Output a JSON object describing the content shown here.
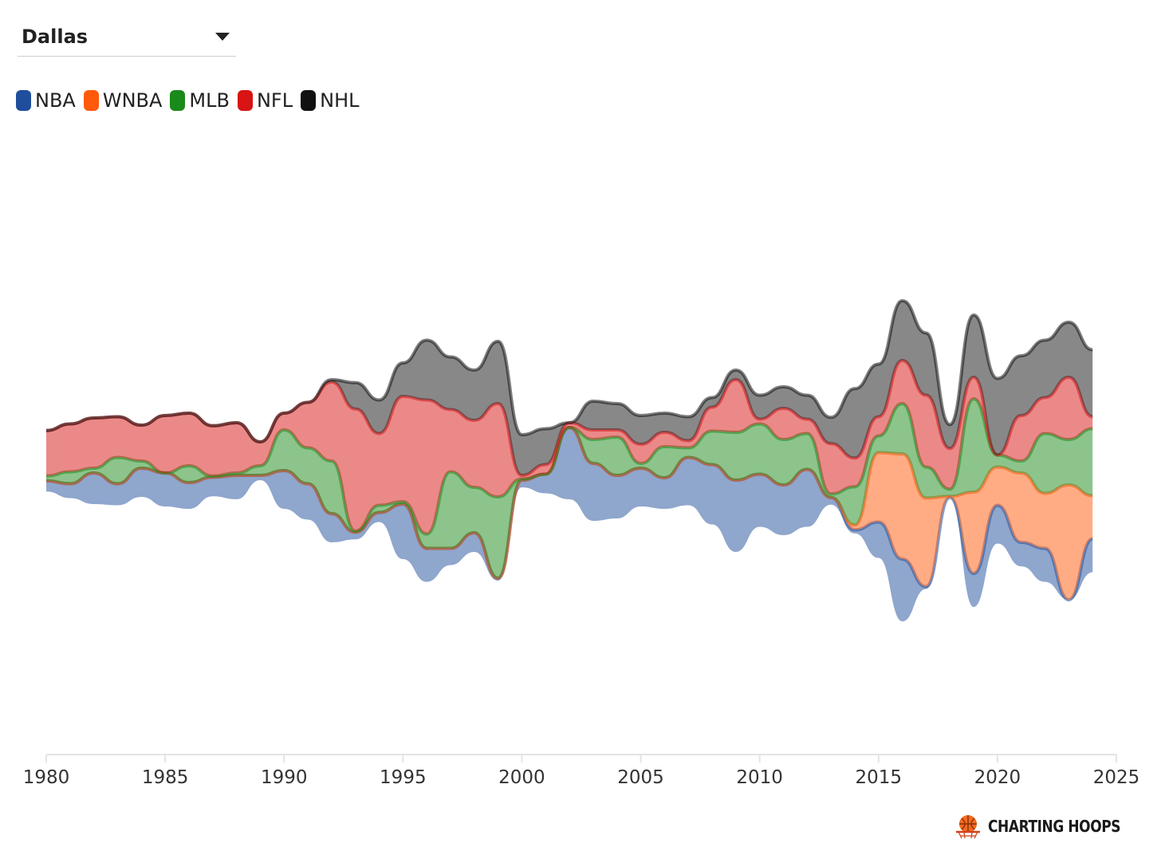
{
  "filter": {
    "selected_city": "Dallas"
  },
  "legend": [
    {
      "key": "nba",
      "label": "NBA",
      "color": "#1f4e9c"
    },
    {
      "key": "wnba",
      "label": "WNBA",
      "color": "#ff5a0a"
    },
    {
      "key": "mlb",
      "label": "MLB",
      "color": "#1a8a1a"
    },
    {
      "key": "nfl",
      "label": "NFL",
      "color": "#d81414"
    },
    {
      "key": "nhl",
      "label": "NHL",
      "color": "#111111"
    }
  ],
  "brand": {
    "name": "CHARTING HOOPS",
    "icon": "basketball-hoop-icon"
  },
  "chart_data": {
    "type": "streamgraph",
    "title": "",
    "xlabel": "",
    "ylabel": "",
    "xlim": [
      1980,
      2025
    ],
    "x_ticks": [
      "1980",
      "1985",
      "1990",
      "1995",
      "2000",
      "2005",
      "2010",
      "2015",
      "2020",
      "2025"
    ],
    "grid": false,
    "x": [
      1980,
      1981,
      1982,
      1983,
      1984,
      1985,
      1986,
      1987,
      1988,
      1989,
      1990,
      1991,
      1992,
      1993,
      1994,
      1995,
      1996,
      1997,
      1998,
      1999,
      2000,
      2001,
      2002,
      2003,
      2004,
      2005,
      2006,
      2007,
      2008,
      2009,
      2010,
      2011,
      2012,
      2013,
      2014,
      2015,
      2016,
      2017,
      2018,
      2019,
      2020,
      2021,
      2022,
      2023,
      2024
    ],
    "series": [
      {
        "name": "NBA",
        "color": "#1f4e9c",
        "values": [
          0.45,
          0.6,
          1.3,
          0.9,
          1.2,
          1.4,
          1.1,
          0.8,
          1.0,
          0.2,
          1.6,
          1.5,
          1.2,
          0.3,
          0.4,
          2.3,
          1.4,
          0.7,
          0.8,
          0.1,
          0.3,
          0.8,
          3.0,
          2.4,
          1.8,
          1.6,
          1.3,
          2.0,
          2.5,
          3.0,
          2.2,
          2.1,
          2.4,
          0.3,
          0.15,
          1.5,
          2.6,
          0.1,
          0.0,
          1.4,
          1.6,
          1.0,
          1.4,
          0.0,
          1.4
        ]
      },
      {
        "name": "WNBA",
        "color": "#ff5a0a",
        "values": [
          0,
          0,
          0,
          0,
          0,
          0,
          0,
          0,
          0,
          0,
          0,
          0,
          0,
          0,
          0,
          0,
          0,
          0,
          0,
          0,
          0,
          0,
          0,
          0,
          0,
          0,
          0,
          0,
          0,
          0,
          0,
          0,
          0,
          0,
          0.2,
          2.9,
          4.4,
          3.7,
          0.05,
          3.4,
          1.6,
          2.9,
          2.3,
          4.8,
          1.8
        ]
      },
      {
        "name": "MLB",
        "color": "#1a8a1a",
        "values": [
          0.2,
          0.5,
          0.2,
          1.1,
          0.3,
          0.0,
          0.7,
          0.05,
          0.1,
          0.4,
          1.7,
          1.5,
          2.2,
          0.05,
          0.3,
          0.1,
          0.6,
          3.2,
          1.9,
          3.4,
          0.05,
          0.0,
          0.0,
          1.0,
          1.6,
          0.2,
          1.3,
          0.4,
          1.4,
          2.0,
          2.1,
          1.9,
          1.5,
          0.15,
          1.6,
          0.7,
          2.1,
          1.3,
          0.3,
          3.9,
          0.5,
          0.5,
          2.5,
          1.9,
          2.8
        ]
      },
      {
        "name": "NFL",
        "color": "#d81414",
        "values": [
          1.9,
          2.0,
          2.1,
          1.7,
          1.5,
          2.4,
          2.2,
          2.1,
          2.1,
          1.0,
          0.7,
          1.9,
          3.3,
          5.1,
          3.0,
          4.4,
          5.6,
          2.6,
          2.8,
          3.9,
          0.15,
          0.4,
          0.2,
          0.4,
          0.3,
          0.8,
          0.6,
          0.3,
          1.0,
          2.2,
          0.2,
          1.3,
          0.6,
          2.1,
          1.2,
          0.8,
          1.8,
          3.0,
          1.7,
          0.9,
          0.0,
          1.9,
          1.5,
          2.6,
          0.5
        ]
      },
      {
        "name": "NHL",
        "color": "#111111",
        "values": [
          0,
          0,
          0,
          0,
          0,
          0,
          0,
          0,
          0,
          0,
          0,
          0,
          0.1,
          1.1,
          1.4,
          1.4,
          2.5,
          2.2,
          2.1,
          2.6,
          1.7,
          1.5,
          0.0,
          1.2,
          1.1,
          1.2,
          0.8,
          1.0,
          0.4,
          0.4,
          1.0,
          0.9,
          1.0,
          1.1,
          2.9,
          2.2,
          2.5,
          2.6,
          1.0,
          2.6,
          3.2,
          2.5,
          2.4,
          2.3,
          2.8
        ]
      }
    ]
  }
}
